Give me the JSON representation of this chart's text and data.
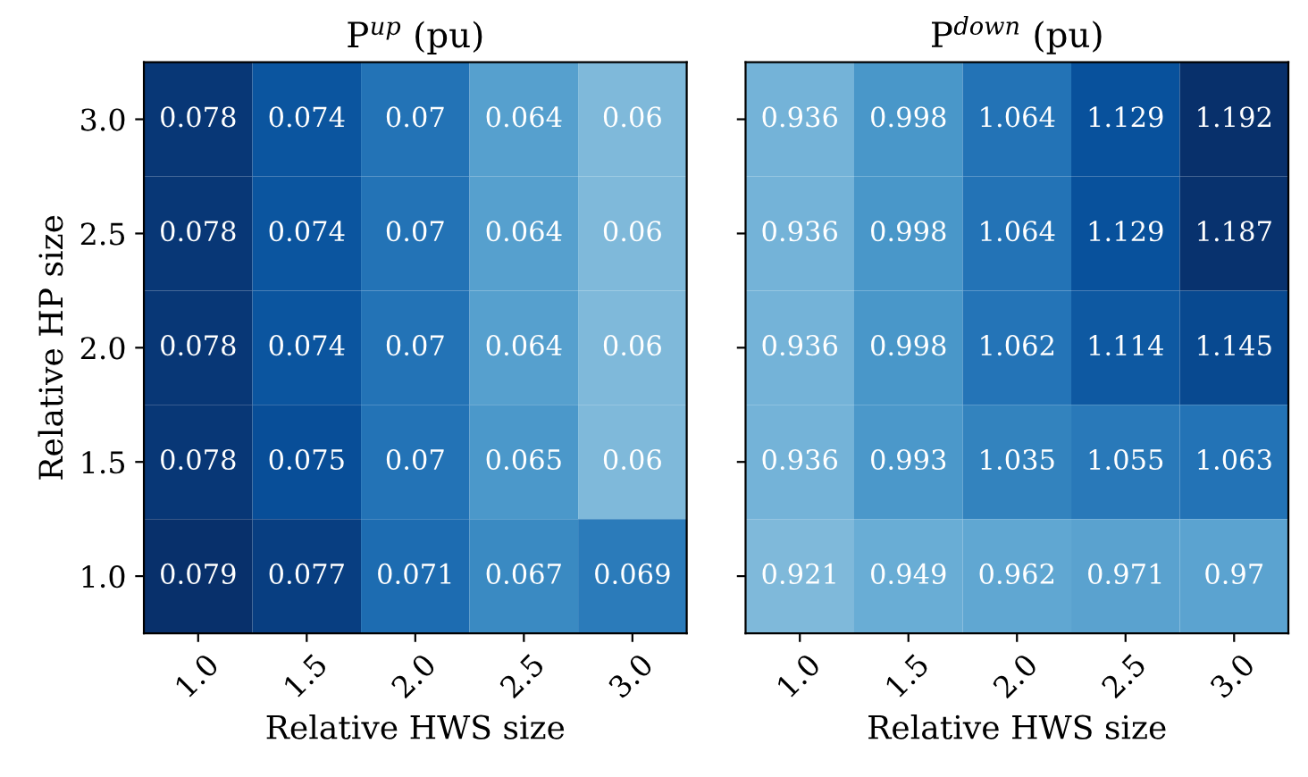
{
  "chart_data": [
    {
      "type": "heatmap",
      "title": "P$^{up}$ (pu)",
      "xlabel": "Relative HWS size",
      "ylabel": "Relative HP size",
      "categories": [
        "1.0",
        "1.5",
        "2.0",
        "2.5",
        "3.0"
      ],
      "y_categories": [
        "3.0",
        "2.5",
        "2.0",
        "1.5",
        "1.0"
      ],
      "cells": [
        [
          0.078,
          0.074,
          0.07,
          0.064,
          0.06
        ],
        [
          0.078,
          0.074,
          0.07,
          0.064,
          0.06
        ],
        [
          0.078,
          0.074,
          0.07,
          0.064,
          0.06
        ],
        [
          0.078,
          0.075,
          0.07,
          0.065,
          0.06
        ],
        [
          0.079,
          0.077,
          0.071,
          0.067,
          0.069
        ]
      ],
      "data_labels": true
    },
    {
      "type": "heatmap",
      "title": "P$^{down}$ (pu)",
      "xlabel": "Relative HWS size",
      "categories": [
        "1.0",
        "1.5",
        "2.0",
        "2.5",
        "3.0"
      ],
      "y_categories": [
        "3.0",
        "2.5",
        "2.0",
        "1.5",
        "1.0"
      ],
      "cells": [
        [
          0.936,
          0.998,
          1.064,
          1.129,
          1.192
        ],
        [
          0.936,
          0.998,
          1.064,
          1.129,
          1.187
        ],
        [
          0.936,
          0.998,
          1.062,
          1.114,
          1.145
        ],
        [
          0.936,
          0.993,
          1.035,
          1.055,
          1.063
        ],
        [
          0.921,
          0.949,
          0.962,
          0.971,
          0.97
        ]
      ],
      "data_labels": true,
      "tick_labels": "x"
    }
  ]
}
